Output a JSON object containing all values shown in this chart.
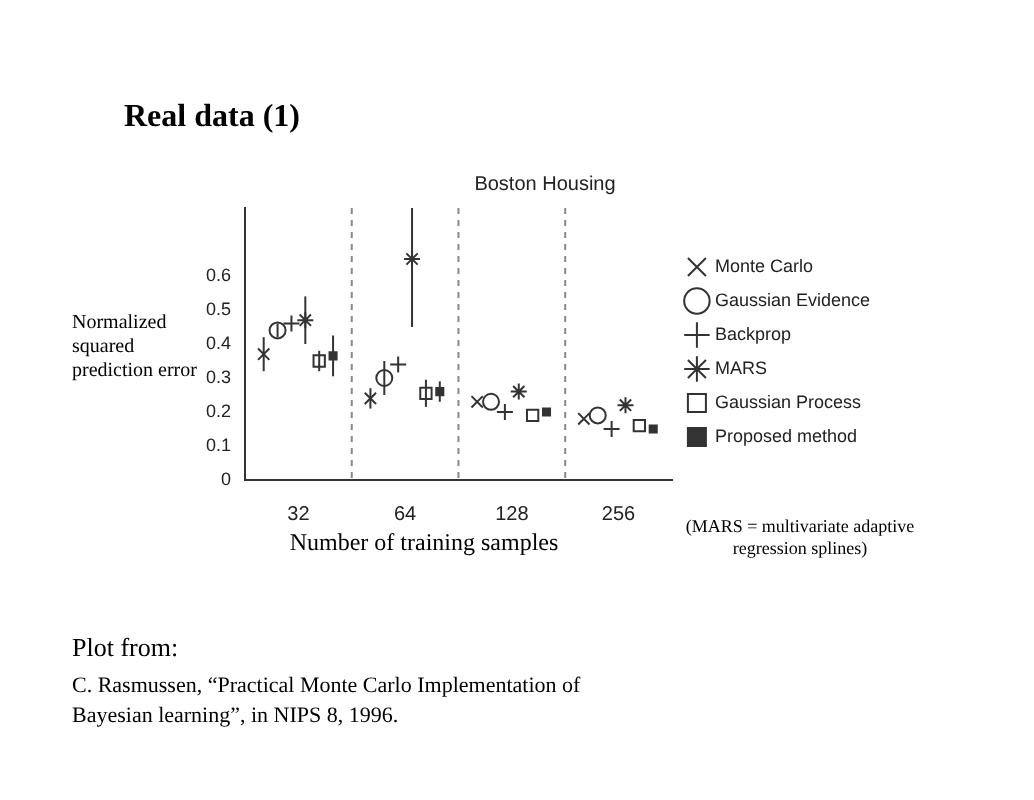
{
  "chart_data": {
    "type": "scatter",
    "title": "Real data (1)",
    "subtitle": "Boston Housing",
    "xlabel": "Number of training samples",
    "ylabel": "Normalized squared prediction error",
    "categories": [
      "32",
      "64",
      "128",
      "256"
    ],
    "ylim": [
      0,
      0.8
    ],
    "yticks": [
      0,
      0.1,
      0.2,
      0.3,
      0.4,
      0.5,
      0.6
    ],
    "grid": "x",
    "legend": "right",
    "series": [
      {
        "name": "Monte Carlo",
        "color": "#333333",
        "values": [
          0.37,
          0.24,
          0.23,
          0.18
        ],
        "errors": [
          0.05,
          0.03,
          null,
          null
        ]
      },
      {
        "name": "Gaussian Evidence",
        "color": "#333333",
        "values": [
          0.44,
          0.3,
          0.23,
          0.19
        ],
        "errors": [
          0.02,
          0.05,
          null,
          null
        ]
      },
      {
        "name": "Backprop",
        "color": "#333333",
        "values": [
          0.46,
          0.34,
          0.2,
          0.15
        ]
      },
      {
        "name": "MARS",
        "color": "#333333",
        "values": [
          0.47,
          0.65,
          0.26,
          0.22
        ],
        "errors": [
          [
            0.4,
            0.54
          ],
          [
            0.45,
            0.8
          ],
          null,
          null
        ]
      },
      {
        "name": "Gaussian Process",
        "color": "#333333",
        "values": [
          0.35,
          0.255,
          0.19,
          0.16
        ],
        "errors": [
          0.03,
          0.04,
          null,
          null
        ]
      },
      {
        "name": "Proposed method",
        "color": "#333333",
        "values": [
          0.365,
          0.26,
          0.2,
          0.15
        ],
        "errors": [
          0.06,
          0.03,
          null,
          null
        ]
      }
    ],
    "annotations": [
      "(MARS = multivariate adaptive regression splines)",
      "Plot from:",
      "C. Rasmussen, “Practical Monte Carlo Implementation of Bayesian learning”, in NIPS 8, 1996."
    ]
  }
}
